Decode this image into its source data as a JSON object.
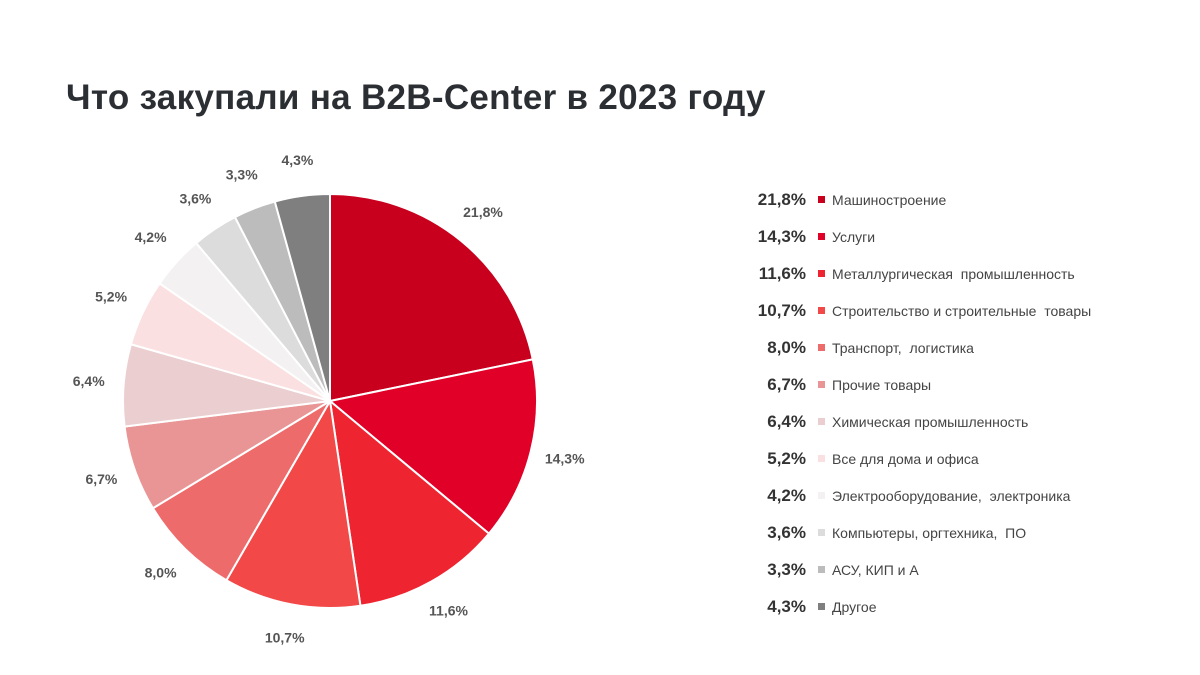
{
  "title": "Что закупали на B2B-Center в 2023 году",
  "chart_data": {
    "type": "pie",
    "title": "Что закупали на B2B-Center в 2023 году",
    "start_angle_deg": 0,
    "direction": "clockwise",
    "slices": [
      {
        "name": "Машиностроение",
        "value": 21.8,
        "label": "21,8%",
        "color": "#c8001e"
      },
      {
        "name": "Услуги",
        "value": 14.3,
        "label": "14,3%",
        "color": "#e00028"
      },
      {
        "name": "Металлургическая  промышленность",
        "value": 11.6,
        "label": "11,6%",
        "color": "#ee2430"
      },
      {
        "name": "Строительство и строительные  товары",
        "value": 10.7,
        "label": "10,7%",
        "color": "#f24848"
      },
      {
        "name": "Транспорт,  логистика",
        "value": 8.0,
        "label": "8,0%",
        "color": "#ee6b6b"
      },
      {
        "name": "Прочие товары",
        "value": 6.7,
        "label": "6,7%",
        "color": "#e99595"
      },
      {
        "name": "Химическая промышленность",
        "value": 6.4,
        "label": "6,4%",
        "color": "#ebcfd0"
      },
      {
        "name": "Все для дома и офиса",
        "value": 5.2,
        "label": "5,2%",
        "color": "#fbe0e1"
      },
      {
        "name": "Электрооборудование,  электроника",
        "value": 4.2,
        "label": "4,2%",
        "color": "#f3f1f2"
      },
      {
        "name": "Компьютеры, оргтехника,  ПО",
        "value": 3.6,
        "label": "3,6%",
        "color": "#dcdcdc"
      },
      {
        "name": "АСУ, КИП и А",
        "value": 3.3,
        "label": "3,3%",
        "color": "#bcbcbc"
      },
      {
        "name": "Другое",
        "value": 4.3,
        "label": "4,3%",
        "color": "#7f7f7f"
      }
    ]
  }
}
